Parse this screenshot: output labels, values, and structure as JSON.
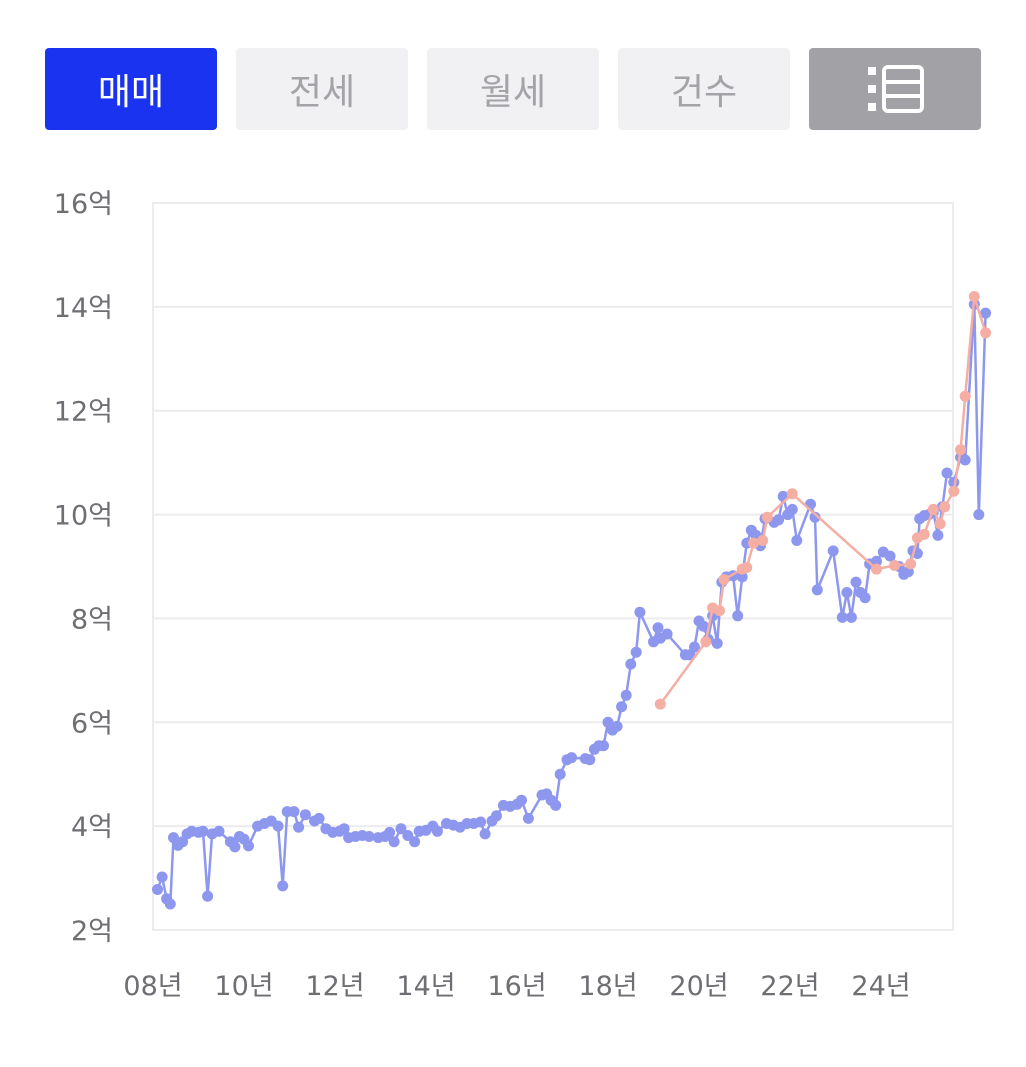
{
  "tabs": [
    {
      "label": "매매",
      "active": true
    },
    {
      "label": "전세",
      "active": false
    },
    {
      "label": "월세",
      "active": false
    },
    {
      "label": "건수",
      "active": false
    }
  ],
  "list_view_icon": "list-icon",
  "colors": {
    "active_tab": "#1a33f0",
    "inactive_tab_bg": "#f1f1f3",
    "inactive_tab_text": "#a3a3a8",
    "list_tab_bg": "#a2a2a6",
    "series_blue": "#8d97ee",
    "series_pink": "#f4aea3",
    "grid": "#ececee"
  },
  "chart_data": {
    "type": "line",
    "y_ticks": [
      "2억",
      "4억",
      "6억",
      "8억",
      "10억",
      "12억",
      "14억",
      "16억"
    ],
    "y_tick_values": [
      2,
      4,
      6,
      8,
      10,
      12,
      14,
      16
    ],
    "x_ticks": [
      "08년",
      "10년",
      "12년",
      "14년",
      "16년",
      "18년",
      "20년",
      "22년",
      "24년"
    ],
    "x_tick_values": [
      2008,
      2010,
      2012,
      2014,
      2016,
      2018,
      2020,
      2022,
      2024
    ],
    "xlim": [
      2008,
      2025.8
    ],
    "ylim": [
      2,
      16
    ],
    "grid": true,
    "series": [
      {
        "color": "#8d97ee",
        "points": [
          [
            2008.1,
            2.78
          ],
          [
            2008.2,
            3.02
          ],
          [
            2008.3,
            2.6
          ],
          [
            2008.38,
            2.5
          ],
          [
            2008.45,
            3.78
          ],
          [
            2008.55,
            3.63
          ],
          [
            2008.65,
            3.7
          ],
          [
            2008.75,
            3.85
          ],
          [
            2008.85,
            3.9
          ],
          [
            2009.0,
            3.88
          ],
          [
            2009.1,
            3.9
          ],
          [
            2009.2,
            2.65
          ],
          [
            2009.3,
            3.85
          ],
          [
            2009.45,
            3.9
          ],
          [
            2009.7,
            3.7
          ],
          [
            2009.8,
            3.6
          ],
          [
            2009.9,
            3.8
          ],
          [
            2010.0,
            3.75
          ],
          [
            2010.1,
            3.62
          ],
          [
            2010.3,
            4.0
          ],
          [
            2010.45,
            4.05
          ],
          [
            2010.6,
            4.1
          ],
          [
            2010.75,
            4.0
          ],
          [
            2010.85,
            2.85
          ],
          [
            2010.95,
            4.28
          ],
          [
            2011.1,
            4.28
          ],
          [
            2011.2,
            3.98
          ],
          [
            2011.35,
            4.22
          ],
          [
            2011.55,
            4.1
          ],
          [
            2011.65,
            4.15
          ],
          [
            2011.8,
            3.95
          ],
          [
            2011.95,
            3.88
          ],
          [
            2012.1,
            3.9
          ],
          [
            2012.2,
            3.95
          ],
          [
            2012.3,
            3.78
          ],
          [
            2012.45,
            3.8
          ],
          [
            2012.6,
            3.82
          ],
          [
            2012.75,
            3.8
          ],
          [
            2012.95,
            3.78
          ],
          [
            2013.1,
            3.8
          ],
          [
            2013.2,
            3.88
          ],
          [
            2013.3,
            3.7
          ],
          [
            2013.45,
            3.95
          ],
          [
            2013.6,
            3.82
          ],
          [
            2013.75,
            3.7
          ],
          [
            2013.85,
            3.9
          ],
          [
            2014.0,
            3.92
          ],
          [
            2014.15,
            4.0
          ],
          [
            2014.25,
            3.9
          ],
          [
            2014.45,
            4.05
          ],
          [
            2014.6,
            4.02
          ],
          [
            2014.75,
            3.98
          ],
          [
            2014.9,
            4.05
          ],
          [
            2015.05,
            4.05
          ],
          [
            2015.2,
            4.08
          ],
          [
            2015.3,
            3.85
          ],
          [
            2015.45,
            4.1
          ],
          [
            2015.55,
            4.2
          ],
          [
            2015.7,
            4.4
          ],
          [
            2015.85,
            4.38
          ],
          [
            2016.0,
            4.42
          ],
          [
            2016.1,
            4.5
          ],
          [
            2016.25,
            4.15
          ],
          [
            2016.55,
            4.6
          ],
          [
            2016.65,
            4.62
          ],
          [
            2016.75,
            4.5
          ],
          [
            2016.85,
            4.4
          ],
          [
            2016.95,
            5.0
          ],
          [
            2017.1,
            5.28
          ],
          [
            2017.2,
            5.32
          ],
          [
            2017.5,
            5.3
          ],
          [
            2017.6,
            5.28
          ],
          [
            2017.7,
            5.48
          ],
          [
            2017.8,
            5.55
          ],
          [
            2017.9,
            5.55
          ],
          [
            2018.0,
            6.0
          ],
          [
            2018.1,
            5.85
          ],
          [
            2018.2,
            5.92
          ],
          [
            2018.3,
            6.3
          ],
          [
            2018.4,
            6.52
          ],
          [
            2018.5,
            7.12
          ],
          [
            2018.62,
            7.35
          ],
          [
            2018.7,
            8.12
          ],
          [
            2019.0,
            7.55
          ],
          [
            2019.1,
            7.82
          ],
          [
            2019.15,
            7.62
          ],
          [
            2019.3,
            7.7
          ],
          [
            2019.7,
            7.3
          ],
          [
            2019.8,
            7.3
          ],
          [
            2019.9,
            7.45
          ],
          [
            2020.0,
            7.95
          ],
          [
            2020.1,
            7.85
          ],
          [
            2020.2,
            7.6
          ],
          [
            2020.3,
            8.05
          ],
          [
            2020.4,
            7.52
          ],
          [
            2020.5,
            8.7
          ],
          [
            2020.6,
            8.8
          ],
          [
            2020.75,
            8.82
          ],
          [
            2020.85,
            8.05
          ],
          [
            2020.95,
            8.8
          ],
          [
            2021.05,
            9.45
          ],
          [
            2021.15,
            9.7
          ],
          [
            2021.25,
            9.6
          ],
          [
            2021.35,
            9.4
          ],
          [
            2021.45,
            9.92
          ],
          [
            2021.65,
            9.85
          ],
          [
            2021.75,
            9.9
          ],
          [
            2021.85,
            10.35
          ],
          [
            2021.95,
            10.0
          ],
          [
            2022.05,
            10.1
          ],
          [
            2022.15,
            9.5
          ],
          [
            2022.45,
            10.2
          ],
          [
            2022.55,
            9.95
          ],
          [
            2022.6,
            8.55
          ],
          [
            2022.95,
            9.3
          ],
          [
            2023.15,
            8.02
          ],
          [
            2023.25,
            8.5
          ],
          [
            2023.35,
            8.02
          ],
          [
            2023.45,
            8.7
          ],
          [
            2023.55,
            8.5
          ],
          [
            2023.65,
            8.4
          ],
          [
            2023.75,
            9.05
          ],
          [
            2023.9,
            9.1
          ],
          [
            2024.05,
            9.28
          ],
          [
            2024.2,
            9.2
          ],
          [
            2024.4,
            9.0
          ],
          [
            2024.5,
            8.85
          ],
          [
            2024.6,
            8.9
          ],
          [
            2024.7,
            9.3
          ],
          [
            2024.8,
            9.25
          ],
          [
            2024.85,
            9.92
          ],
          [
            2024.95,
            9.98
          ],
          [
            2025.05,
            10.0
          ],
          [
            2025.15,
            10.05
          ],
          [
            2025.25,
            9.6
          ],
          [
            2025.35,
            10.15
          ],
          [
            2025.45,
            10.8
          ],
          [
            2025.6,
            10.62
          ],
          [
            2025.75,
            11.1
          ],
          [
            2025.85,
            11.05
          ],
          [
            2026.05,
            14.05
          ],
          [
            2026.15,
            10.0
          ],
          [
            2026.3,
            13.88
          ]
        ]
      },
      {
        "color": "#f4aea3",
        "points": [
          [
            2019.15,
            6.35
          ],
          [
            2020.15,
            7.55
          ],
          [
            2020.3,
            8.2
          ],
          [
            2020.45,
            8.15
          ],
          [
            2020.55,
            8.75
          ],
          [
            2020.95,
            8.95
          ],
          [
            2021.05,
            8.98
          ],
          [
            2021.2,
            9.45
          ],
          [
            2021.4,
            9.5
          ],
          [
            2021.5,
            9.95
          ],
          [
            2022.05,
            10.4
          ],
          [
            2023.9,
            8.95
          ],
          [
            2024.3,
            9.02
          ],
          [
            2024.65,
            9.05
          ],
          [
            2024.8,
            9.55
          ],
          [
            2024.95,
            9.62
          ],
          [
            2025.15,
            10.1
          ],
          [
            2025.3,
            9.82
          ],
          [
            2025.4,
            10.15
          ],
          [
            2025.6,
            10.45
          ],
          [
            2025.75,
            11.25
          ],
          [
            2025.85,
            12.28
          ],
          [
            2026.05,
            14.2
          ],
          [
            2026.3,
            13.5
          ]
        ]
      }
    ]
  }
}
